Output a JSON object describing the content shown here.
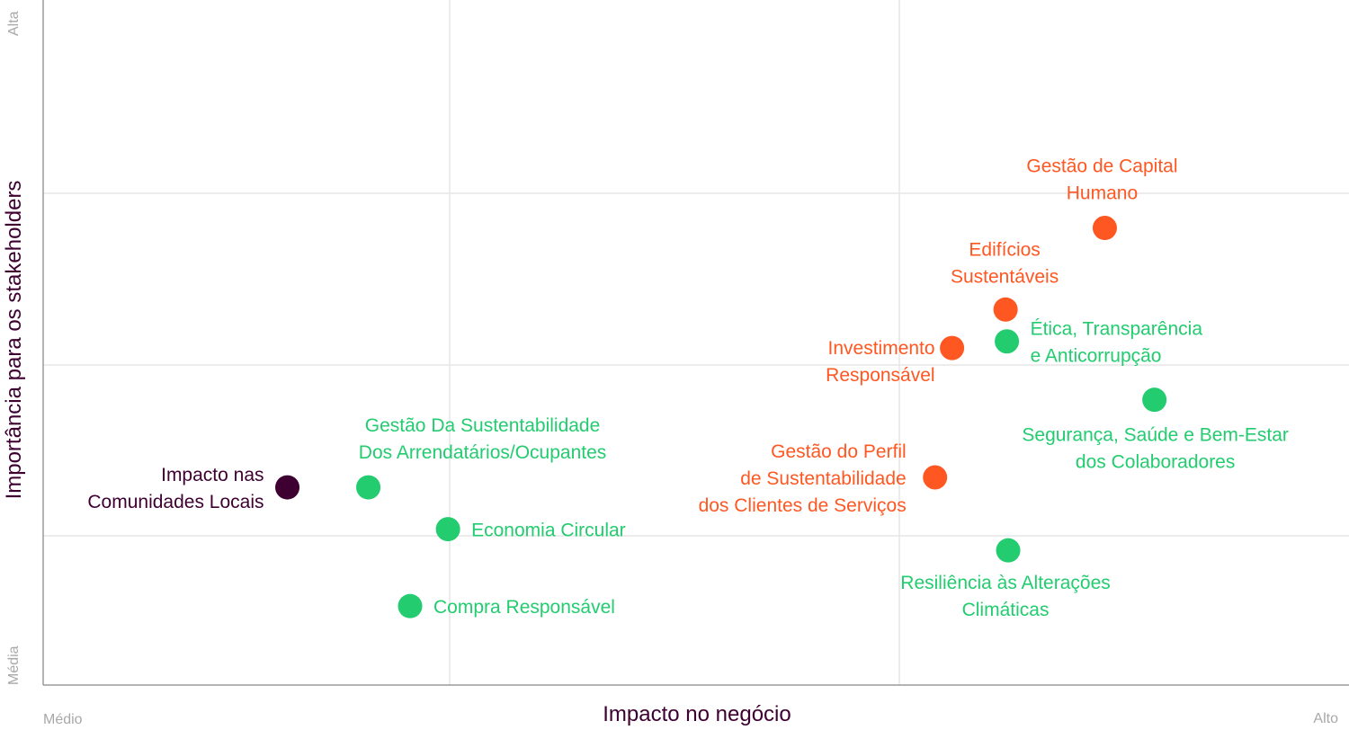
{
  "colors": {
    "orange": "#ff5722",
    "green": "#22cc6f",
    "dark": "#3d0030",
    "grid": "#e6e6e6",
    "axis": "#9a9a9a",
    "tick": "#a8a8a8"
  },
  "chart_data": {
    "type": "scatter",
    "xlabel": "Impacto no negócio",
    "ylabel": "Importância para os stakeholders",
    "x_tick_labels": {
      "min": "Médio",
      "max": "Alto"
    },
    "y_tick_labels": {
      "min": "Média",
      "max": "Alta"
    },
    "xlim": [
      0,
      1
    ],
    "ylim": [
      0,
      1
    ],
    "grid": true,
    "points": [
      {
        "label": "Gestão de Capital Humano",
        "lines": [
          "Gestão de Capital",
          "Humano"
        ],
        "x": 0.813,
        "y": 0.689,
        "color": "orange",
        "label_pos": "above"
      },
      {
        "label": "Edifícios Sustentáveis",
        "lines": [
          "Edifícios",
          "Sustentáveis"
        ],
        "x": 0.737,
        "y": 0.566,
        "color": "orange",
        "label_pos": "above"
      },
      {
        "label": "Ética, Transparência e Anticorrupção",
        "lines": [
          "Ética, Transparência",
          "e Anticorrupção"
        ],
        "x": 0.738,
        "y": 0.518,
        "color": "green",
        "label_pos": "right"
      },
      {
        "label": "Investimento Responsável",
        "lines": [
          "Investimento",
          "Responsável"
        ],
        "x": 0.696,
        "y": 0.508,
        "color": "orange",
        "label_pos": "left"
      },
      {
        "label": "Segurança, Saúde e Bem-Estar dos Colaboradores",
        "lines": [
          "Segurança, Saúde e Bem-Estar",
          "dos Colaboradores"
        ],
        "x": 0.851,
        "y": 0.43,
        "color": "green",
        "label_pos": "below"
      },
      {
        "label": "Gestão do Perfil de Sustentabilidade dos Clientes de Serviços",
        "lines": [
          "Gestão do Perfil",
          "de Sustentabilidade",
          "dos Clientes de Serviços"
        ],
        "x": 0.683,
        "y": 0.313,
        "color": "orange",
        "label_pos": "left"
      },
      {
        "label": "Resiliência às Alterações Climáticas",
        "lines": [
          "Resiliência às Alterações",
          "Climáticas"
        ],
        "x": 0.739,
        "y": 0.203,
        "color": "green",
        "label_pos": "below"
      },
      {
        "label": "Impacto nas Comunidades Locais",
        "lines": [
          "Impacto nas",
          "Comunidades Locais"
        ],
        "x": 0.187,
        "y": 0.298,
        "color": "dark",
        "label_pos": "left"
      },
      {
        "label": "Gestão Da Sustentabilidade Dos Arrendatários/Ocupantes",
        "lines": [
          "Gestão Da Sustentabilidade",
          "Dos Arrendatários/Ocupantes"
        ],
        "x": 0.249,
        "y": 0.298,
        "color": "green",
        "label_pos": "above"
      },
      {
        "label": "Economia Circular",
        "lines": [
          "Economia Circular"
        ],
        "x": 0.31,
        "y": 0.235,
        "color": "green",
        "label_pos": "right"
      },
      {
        "label": "Compra Responsável",
        "lines": [
          "Compra Responsável"
        ],
        "x": 0.281,
        "y": 0.119,
        "color": "green",
        "label_pos": "right"
      }
    ]
  }
}
